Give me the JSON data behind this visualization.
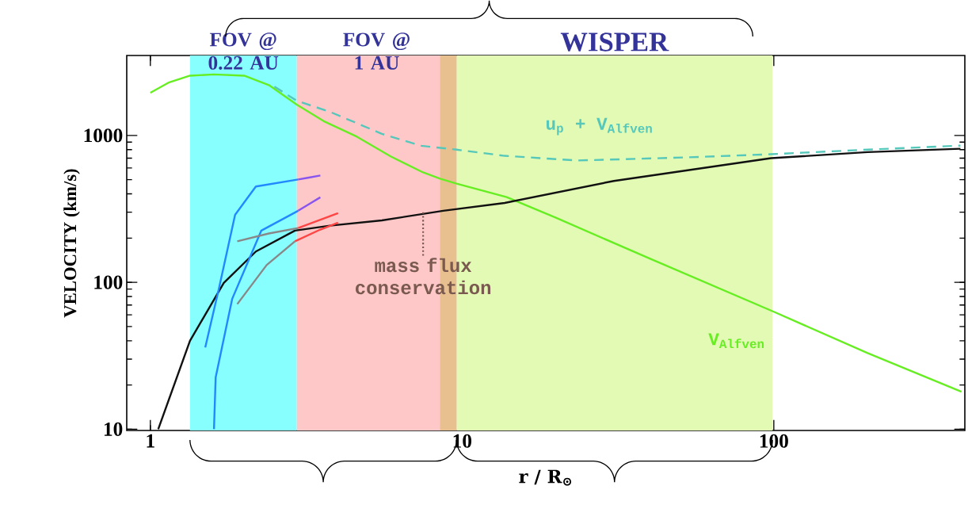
{
  "chart_data": {
    "type": "line",
    "xlabel": "r / R$_{⊙}$",
    "ylabel": "VELOCITY  (km/s)",
    "log": "xy",
    "xlim": [
      0.84,
      410
    ],
    "ylim": [
      9.8,
      3500
    ],
    "xticks": [
      1,
      10,
      100
    ],
    "yticks": [
      10,
      100,
      1000
    ],
    "marker": "none",
    "series": [
      {
        "name": "V$_{Alfven}$",
        "color": "#66ee22",
        "line_style": "solid",
        "x": [
          1.0,
          1.15,
          1.34,
          1.6,
          2.0,
          2.4,
          2.95,
          3.6,
          4.6,
          5.9,
          7.5,
          8.5,
          9.6,
          13.9,
          20,
          40,
          100,
          200,
          400
        ],
        "values": [
          1950,
          2300,
          2550,
          2600,
          2550,
          2200,
          1620,
          1250,
          980,
          720,
          560,
          508,
          470,
          380,
          275,
          145,
          63,
          33,
          18
        ]
      },
      {
        "name": "u$_{p}$ + V$_{Alfven}$",
        "color": "#55c8bb",
        "line_style": "dashed",
        "x": [
          2.5,
          2.95,
          3.77,
          5.53,
          7.4,
          9.6,
          13.7,
          23.5,
          52,
          98,
          200,
          397
        ],
        "values": [
          2150,
          1720,
          1447,
          1025,
          850,
          800,
          726,
          675,
          708,
          745,
          800,
          852
        ]
      },
      {
        "color": "#111111",
        "line_style": "solid",
        "x": [
          1.06,
          1.34,
          1.72,
          2.18,
          2.91,
          3.77,
          5.53,
          8.7,
          13.7,
          30.7,
          98,
          200,
          397
        ],
        "values": [
          10,
          40,
          99,
          162,
          225,
          243,
          264,
          307,
          347,
          490,
          700,
          770,
          811
        ]
      },
      {
        "color": "#2288ff",
        "line_style": "solid",
        "x": [
          1.5,
          1.66,
          1.87,
          2.18,
          2.98
        ],
        "values": [
          36,
          91,
          288,
          449,
          501
        ]
      },
      {
        "color": "#8855ee",
        "line_style": "solid",
        "x": [
          2.98,
          3.2,
          3.51
        ],
        "values": [
          501,
          515,
          533
        ]
      },
      {
        "color": "#2288ff",
        "line_style": "solid",
        "x": [
          1.6,
          1.62,
          1.83,
          2.27,
          2.98
        ],
        "values": [
          10,
          22.5,
          77,
          225,
          307
        ]
      },
      {
        "color": "#8855ee",
        "line_style": "solid",
        "x": [
          2.98,
          3.51
        ],
        "values": [
          307,
          379
        ]
      },
      {
        "color": "#888888",
        "line_style": "solid",
        "x": [
          1.9,
          2.4,
          2.98
        ],
        "values": [
          190,
          215,
          234
        ]
      },
      {
        "color": "#ff4444",
        "line_style": "solid",
        "x": [
          2.98,
          4.0
        ],
        "values": [
          234,
          296
        ]
      },
      {
        "color": "#888888",
        "line_style": "solid",
        "x": [
          1.9,
          2.36,
          2.91
        ],
        "values": [
          71,
          131,
          190
        ]
      },
      {
        "color": "#ff4444",
        "line_style": "solid",
        "x": [
          2.91,
          3.5,
          4.0
        ],
        "values": [
          190,
          228,
          255
        ]
      }
    ],
    "bands": [
      {
        "axis": "x",
        "from": 1.34,
        "to": 2.95,
        "label": "FOV @ 0.22 AU",
        "color": "#88ffff"
      },
      {
        "axis": "x",
        "from": 2.95,
        "to": 9.6,
        "label": "FOV @ 1 AU",
        "color": "#ffc8c8"
      },
      {
        "axis": "x",
        "from": 9.6,
        "to": 99,
        "label": "WISPER",
        "color": "#e2fab4"
      },
      {
        "axis": "x",
        "from": 8.5,
        "to": 9.6,
        "color": "#e8c090"
      }
    ],
    "annotations": [
      {
        "text": "mass flux conservation",
        "x": 7.5,
        "y": 300
      }
    ]
  }
}
